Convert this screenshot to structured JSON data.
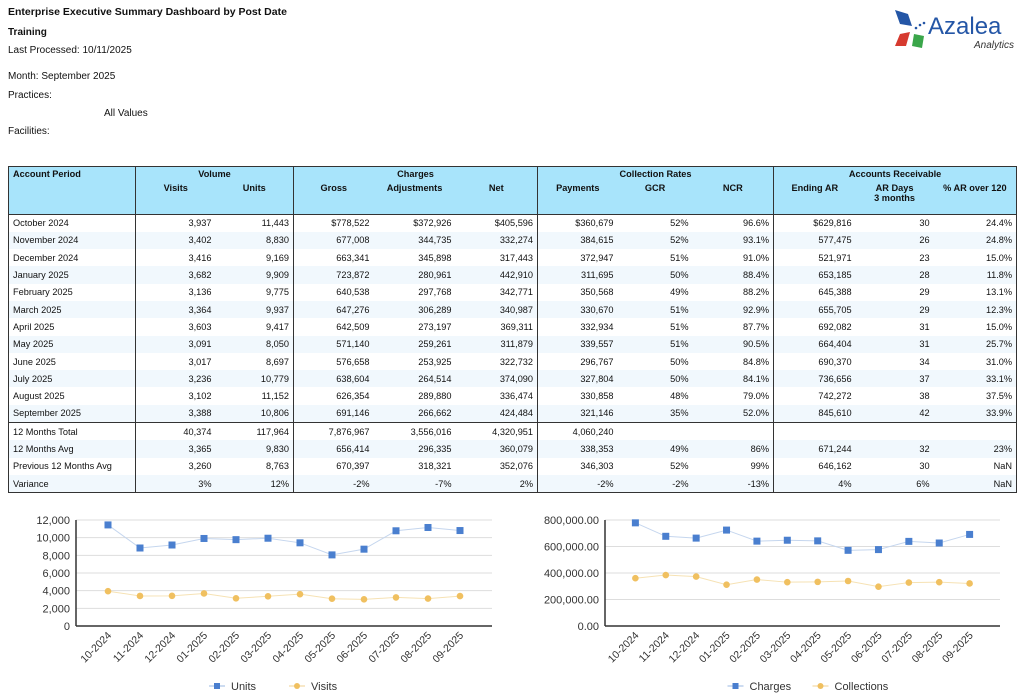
{
  "report": {
    "title": "Enterprise Executive Summary Dashboard by Post Date",
    "subtitle": "Training",
    "last_processed": "Last Processed: 10/11/2025",
    "month": "Month: September 2025",
    "practices_label": "Practices:",
    "practices_value": "All Values",
    "facilities_label": "Facilities:"
  },
  "logo": {
    "brand": "Azalea",
    "sub": "Analytics"
  },
  "table": {
    "group_headers": [
      "Account Period",
      "Volume",
      "Charges",
      "Collection Rates",
      "Accounts Receivable"
    ],
    "columns": [
      "Visits",
      "Units",
      "Gross",
      "Adjustments",
      "Net",
      "Payments",
      "GCR",
      "NCR",
      "Ending AR",
      "AR Days",
      "3 months",
      "% AR over 120"
    ],
    "rows": [
      [
        "October 2024",
        "3,937",
        "11,443",
        "$778,522",
        "$372,926",
        "$405,596",
        "$360,679",
        "52%",
        "96.6%",
        "$629,816",
        "30",
        "24.4%"
      ],
      [
        "November 2024",
        "3,402",
        "8,830",
        "677,008",
        "344,735",
        "332,274",
        "384,615",
        "52%",
        "93.1%",
        "577,475",
        "26",
        "24.8%"
      ],
      [
        "December 2024",
        "3,416",
        "9,169",
        "663,341",
        "345,898",
        "317,443",
        "372,947",
        "51%",
        "91.0%",
        "521,971",
        "23",
        "15.0%"
      ],
      [
        "January 2025",
        "3,682",
        "9,909",
        "723,872",
        "280,961",
        "442,910",
        "311,695",
        "50%",
        "88.4%",
        "653,185",
        "28",
        "11.8%"
      ],
      [
        "February 2025",
        "3,136",
        "9,775",
        "640,538",
        "297,768",
        "342,771",
        "350,568",
        "49%",
        "88.2%",
        "645,388",
        "29",
        "13.1%"
      ],
      [
        "March 2025",
        "3,364",
        "9,937",
        "647,276",
        "306,289",
        "340,987",
        "330,670",
        "51%",
        "92.9%",
        "655,705",
        "29",
        "12.3%"
      ],
      [
        "April 2025",
        "3,603",
        "9,417",
        "642,509",
        "273,197",
        "369,311",
        "332,934",
        "51%",
        "87.7%",
        "692,082",
        "31",
        "15.0%"
      ],
      [
        "May 2025",
        "3,091",
        "8,050",
        "571,140",
        "259,261",
        "311,879",
        "339,557",
        "51%",
        "90.5%",
        "664,404",
        "31",
        "25.7%"
      ],
      [
        "June 2025",
        "3,017",
        "8,697",
        "576,658",
        "253,925",
        "322,732",
        "296,767",
        "50%",
        "84.8%",
        "690,370",
        "34",
        "31.0%"
      ],
      [
        "July 2025",
        "3,236",
        "10,779",
        "638,604",
        "264,514",
        "374,090",
        "327,804",
        "50%",
        "84.1%",
        "736,656",
        "37",
        "33.1%"
      ],
      [
        "August 2025",
        "3,102",
        "11,152",
        "626,354",
        "289,880",
        "336,474",
        "330,858",
        "48%",
        "79.0%",
        "742,272",
        "38",
        "37.5%"
      ],
      [
        "September 2025",
        "3,388",
        "10,806",
        "691,146",
        "266,662",
        "424,484",
        "321,146",
        "35%",
        "52.0%",
        "845,610",
        "42",
        "33.9%"
      ]
    ],
    "summary_rows": [
      [
        "12 Months Total",
        "40,374",
        "117,964",
        "7,876,967",
        "3,556,016",
        "4,320,951",
        "4,060,240",
        "",
        "",
        "",
        "",
        ""
      ],
      [
        "12 Months Avg",
        "3,365",
        "9,830",
        "656,414",
        "296,335",
        "360,079",
        "338,353",
        "49%",
        "86%",
        "671,244",
        "32",
        "23%"
      ],
      [
        "Previous 12 Months Avg",
        "3,260",
        "8,763",
        "670,397",
        "318,321",
        "352,076",
        "346,303",
        "52%",
        "99%",
        "646,162",
        "30",
        "NaN"
      ],
      [
        "Variance",
        "3%",
        "12%",
        "-2%",
        "-7%",
        "2%",
        "-2%",
        "-2%",
        "-13%",
        "4%",
        "6%",
        "NaN"
      ]
    ]
  },
  "chart_data": [
    {
      "type": "line",
      "categories": [
        "10-2024",
        "11-2024",
        "12-2024",
        "01-2025",
        "02-2025",
        "03-2025",
        "04-2025",
        "05-2025",
        "06-2025",
        "07-2025",
        "08-2025",
        "09-2025"
      ],
      "series": [
        {
          "name": "Units",
          "values": [
            11443,
            8830,
            9169,
            9909,
            9775,
            9937,
            9417,
            8050,
            8697,
            10779,
            11152,
            10806
          ],
          "color": "#4a7fcf",
          "marker": "square"
        },
        {
          "name": "Visits",
          "values": [
            3937,
            3402,
            3416,
            3682,
            3136,
            3364,
            3603,
            3091,
            3017,
            3236,
            3102,
            3388
          ],
          "color": "#f0c060",
          "marker": "circle"
        }
      ],
      "yticks": [
        "0",
        "2,000",
        "4,000",
        "6,000",
        "8,000",
        "10,000",
        "12,000"
      ],
      "ylim": [
        0,
        12000
      ],
      "grid": true,
      "legend": "bottom"
    },
    {
      "type": "line",
      "categories": [
        "10-2024",
        "11-2024",
        "12-2024",
        "01-2025",
        "02-2025",
        "03-2025",
        "04-2025",
        "05-2025",
        "06-2025",
        "07-2025",
        "08-2025",
        "09-2025"
      ],
      "series": [
        {
          "name": "Charges",
          "values": [
            778522,
            677008,
            663341,
            723872,
            640538,
            647276,
            642509,
            571140,
            576658,
            638604,
            626354,
            691146
          ],
          "color": "#4a7fcf",
          "marker": "square"
        },
        {
          "name": "Collections",
          "values": [
            360679,
            384615,
            372947,
            311695,
            350568,
            330670,
            332934,
            339557,
            296767,
            327804,
            330858,
            321146
          ],
          "color": "#f0c060",
          "marker": "circle"
        }
      ],
      "yticks": [
        "0.00",
        "200,000.00",
        "400,000.00",
        "600,000.00",
        "800,000.00"
      ],
      "ylim": [
        0,
        800000
      ],
      "grid": true,
      "legend": "bottom"
    }
  ]
}
